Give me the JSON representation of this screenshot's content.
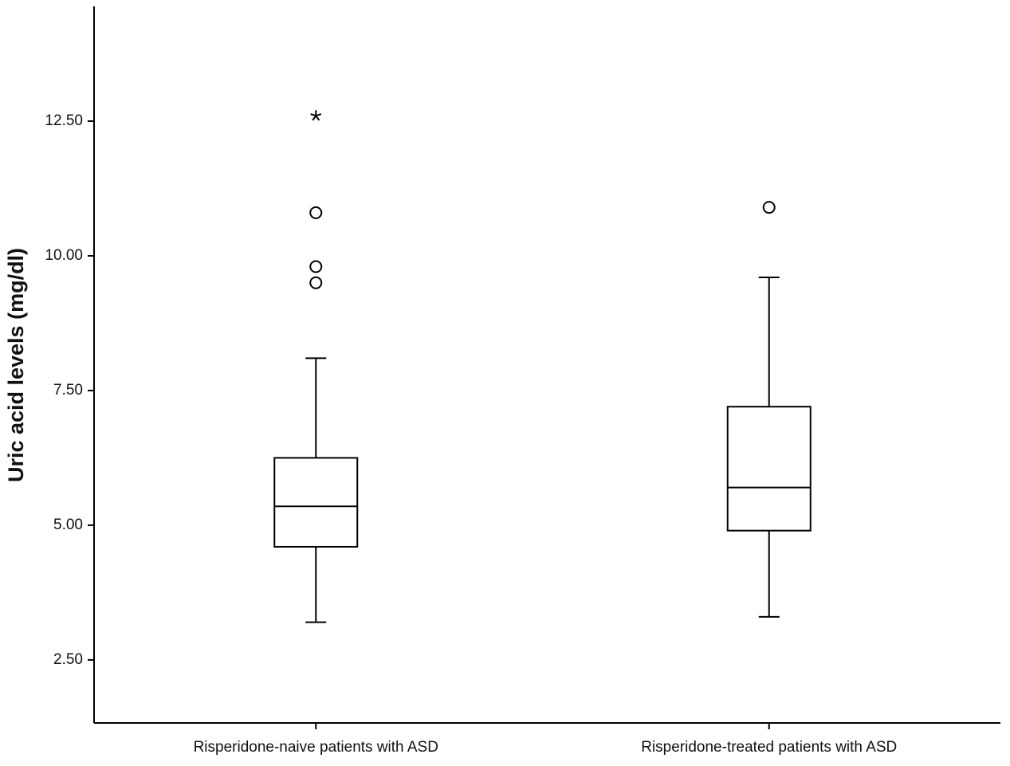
{
  "chart_data": {
    "type": "box",
    "y_label": "Uric acid levels (mg/dl)",
    "categories": [
      "Risperidone-naive patients with ASD",
      "Risperidone-treated patients with ASD"
    ],
    "color": "#000000",
    "boxes": [
      {
        "min": 3.2,
        "q1": 4.6,
        "median": 5.35,
        "q3": 6.25,
        "max": 8.1,
        "outliers": [
          10.8,
          9.8,
          9.5
        ],
        "extremes": [
          12.6
        ]
      },
      {
        "min": 3.3,
        "q1": 4.9,
        "median": 5.7,
        "q3": 7.2,
        "max": 9.6,
        "outliers": [
          10.9
        ],
        "extremes": []
      }
    ],
    "ylim": [
      1.33,
      14.63
    ],
    "yticks": [
      {
        "value": 2.5,
        "label": "2.50"
      },
      {
        "value": 5,
        "label": "5.00"
      },
      {
        "value": 7.5,
        "label": "7.50"
      },
      {
        "value": 10,
        "label": "10.00"
      },
      {
        "value": 12.5,
        "label": "12.50"
      }
    ]
  }
}
